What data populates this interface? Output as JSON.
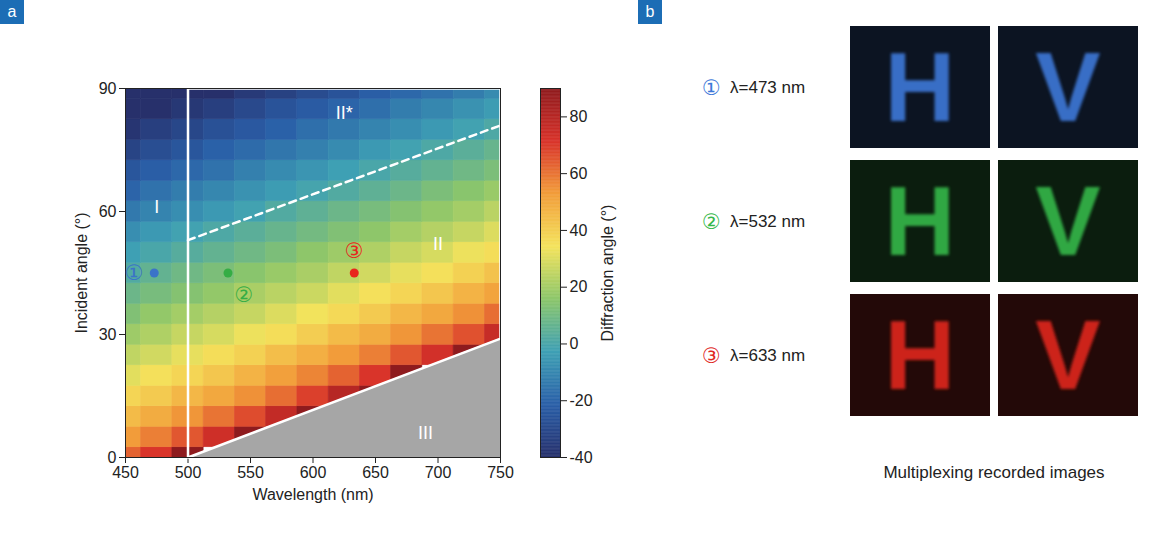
{
  "chart_data": {
    "panel": "a",
    "type": "heatmap",
    "xlabel": "Wavelength (nm)",
    "ylabel": "Incident angle (°)",
    "xlim": [
      450,
      750
    ],
    "xticks": [
      450,
      500,
      550,
      600,
      650,
      700,
      750
    ],
    "ylim": [
      0,
      90
    ],
    "yticks": [
      0,
      30,
      60,
      90
    ],
    "colorbar": {
      "label": "Diffraction angle (°)",
      "range": [
        -40,
        90
      ],
      "ticks": [
        -40,
        -20,
        0,
        20,
        40,
        60,
        80
      ]
    },
    "x": [
      450,
      475,
      500,
      525,
      550,
      575,
      600,
      625,
      650,
      675,
      700,
      725,
      750
    ],
    "y": [
      0,
      5,
      10,
      15,
      20,
      25,
      30,
      35,
      40,
      45,
      50,
      55,
      60,
      65,
      70,
      75,
      80,
      85,
      90
    ],
    "values": [
      [
        63,
        71,
        90,
        null,
        null,
        null,
        null,
        null,
        null,
        null,
        null,
        null,
        null
      ],
      [
        53,
        58,
        65,
        74,
        90,
        null,
        null,
        null,
        null,
        null,
        null,
        null,
        null
      ],
      [
        45,
        49,
        54,
        60,
        67,
        77,
        90,
        null,
        null,
        null,
        null,
        null,
        null
      ],
      [
        38,
        41,
        46,
        50,
        55,
        61,
        69,
        80,
        90,
        null,
        null,
        null,
        null
      ],
      [
        31,
        35,
        38,
        42,
        47,
        52,
        57,
        63,
        71,
        90,
        null,
        null,
        null
      ],
      [
        25,
        28,
        32,
        36,
        39,
        44,
        48,
        53,
        58,
        65,
        73,
        90,
        null
      ],
      [
        19,
        22,
        26,
        29,
        33,
        36,
        40,
        45,
        49,
        54,
        60,
        66,
        76
      ],
      [
        13,
        17,
        20,
        23,
        26,
        30,
        34,
        37,
        41,
        46,
        50,
        55,
        61
      ],
      [
        8,
        11,
        14,
        17,
        21,
        24,
        27,
        31,
        35,
        38,
        42,
        47,
        51
      ],
      [
        2,
        6,
        9,
        12,
        15,
        18,
        21,
        25,
        28,
        32,
        35,
        39,
        43
      ],
      [
        -3,
        0,
        3,
        6,
        9,
        12,
        16,
        19,
        22,
        26,
        29,
        33,
        36
      ],
      [
        -8,
        -5,
        -2,
        1,
        4,
        7,
        10,
        13,
        16,
        20,
        23,
        26,
        30
      ],
      [
        -14,
        -11,
        -8,
        -5,
        -2,
        2,
        5,
        8,
        11,
        14,
        17,
        20,
        24
      ],
      [
        -20,
        -16,
        -13,
        -10,
        -7,
        -4,
        -1,
        2,
        5,
        8,
        12,
        15,
        18
      ],
      [
        -25,
        -22,
        -19,
        -16,
        -12,
        -9,
        -6,
        -3,
        0,
        3,
        6,
        9,
        12
      ],
      [
        -32,
        -28,
        -25,
        -21,
        -18,
        -15,
        -12,
        -9,
        -5,
        -2,
        1,
        4,
        7
      ],
      [
        -38,
        -34,
        -31,
        -27,
        -24,
        -21,
        -17,
        -14,
        -11,
        -8,
        -5,
        -2,
        1
      ],
      [
        -40,
        -40,
        -37,
        -34,
        -30,
        -26,
        -23,
        -20,
        -17,
        -13,
        -10,
        -7,
        -4
      ],
      [
        -40,
        -40,
        -40,
        -40,
        -36,
        -33,
        -29,
        -26,
        -22,
        -19,
        -16,
        -13,
        -9
      ]
    ],
    "regions": [
      {
        "label": "I",
        "x": 475,
        "y": 61
      },
      {
        "label": "II",
        "x": 700,
        "y": 52
      },
      {
        "label": "II*",
        "x": 625,
        "y": 84
      },
      {
        "label": "III",
        "x": 690,
        "y": 6,
        "color": "#a6a6a6",
        "boundary": {
          "x": [
            500,
            750
          ],
          "y": [
            0,
            29
          ]
        }
      }
    ],
    "boundaries": [
      {
        "x": [
          500,
          500,
          750,
          750,
          500
        ],
        "y": [
          0,
          90,
          90,
          29,
          0
        ],
        "line_style": "solid"
      },
      {
        "x": [
          500,
          750
        ],
        "y": [
          53,
          81
        ],
        "line_style": "dashed"
      }
    ],
    "points": [
      {
        "label": "①",
        "x": 473,
        "y": 45,
        "color": "#3b73c8"
      },
      {
        "label": "②",
        "x": 532,
        "y": 45,
        "color": "#35ad45"
      },
      {
        "label": "③",
        "x": 633,
        "y": 45,
        "color": "#e8251d"
      }
    ]
  },
  "panel_b": {
    "panel": "b",
    "rows": [
      {
        "marker": "①",
        "label": "λ=473 nm",
        "color": "#3d78d8"
      },
      {
        "marker": "②",
        "label": "λ=532 nm",
        "color": "#35b84a"
      },
      {
        "marker": "③",
        "label": "λ=633 nm",
        "color": "#e0271f"
      }
    ],
    "images": [
      "H",
      "V"
    ],
    "caption": "Multiplexing recorded images"
  }
}
